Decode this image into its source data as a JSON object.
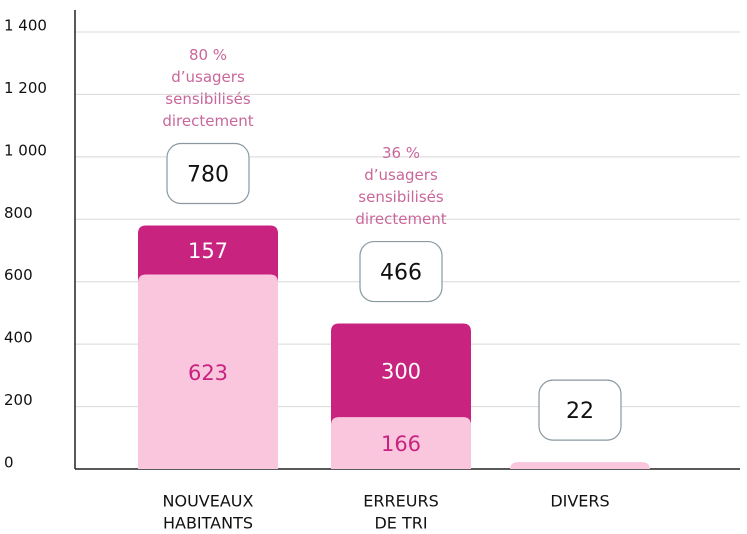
{
  "chart_data": {
    "type": "stacked-bar",
    "categories": [
      [
        "NOUVEAUX",
        "HABITANTS"
      ],
      [
        "ERREURS",
        "DE TRI"
      ],
      [
        "DIVERS"
      ]
    ],
    "series": [
      {
        "color": "#f9c6dd",
        "label_color": "#c8237f",
        "values": [
          623,
          166,
          22
        ]
      },
      {
        "color": "#c8237f",
        "label_color": "#ffffff",
        "values": [
          157,
          300,
          null
        ]
      }
    ],
    "totals": [
      780,
      466,
      22
    ],
    "annotations": [
      [
        "80 %",
        "d’usagers",
        "sensibilisés",
        "directement"
      ],
      [
        "36 %",
        "d’usagers",
        "sensibilisés",
        "directement"
      ],
      null
    ],
    "annotation_color": "#c9679b",
    "ylim": [
      0,
      1400
    ],
    "yticks": [
      0,
      200,
      400,
      600,
      800,
      {
        "value": 1000,
        "label": "1 000"
      },
      {
        "value": 1200,
        "label": "1 200"
      },
      {
        "value": 1400,
        "label": "1 400"
      }
    ],
    "grid": true
  }
}
